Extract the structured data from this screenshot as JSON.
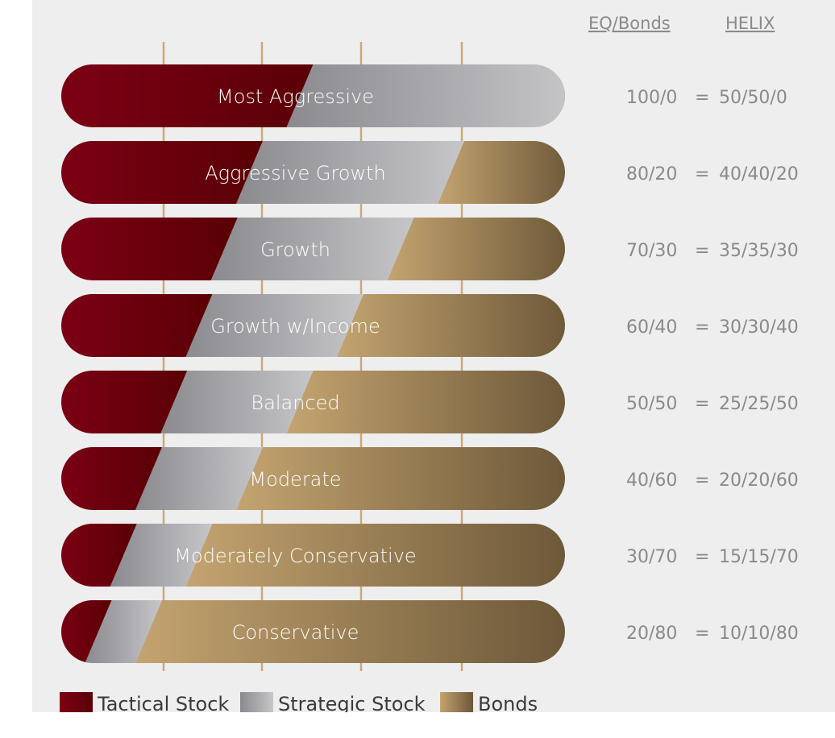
{
  "chart_data": {
    "type": "bar",
    "stacked": true,
    "orientation": "horizontal",
    "headers": {
      "eq_bonds": "EQ/Bonds",
      "helix": "HELIX"
    },
    "categories": [
      "Most Aggressive",
      "Aggressive Growth",
      "Growth",
      "Growth w/Income",
      "Balanced",
      "Moderate",
      "Moderately Conservative",
      "Conservative"
    ],
    "series": [
      {
        "name": "Tactical Stock",
        "values": [
          50,
          40,
          35,
          30,
          25,
          20,
          15,
          10
        ]
      },
      {
        "name": "Strategic Stock",
        "values": [
          50,
          40,
          35,
          30,
          25,
          20,
          15,
          10
        ]
      },
      {
        "name": "Bonds",
        "values": [
          0,
          20,
          30,
          40,
          50,
          60,
          70,
          80
        ]
      }
    ],
    "eq_bonds": [
      "100/0",
      "80/20",
      "70/30",
      "60/40",
      "50/50",
      "40/60",
      "30/70",
      "20/80"
    ],
    "helix": [
      "50/50/0",
      "40/40/20",
      "35/35/30",
      "30/30/40",
      "25/25/50",
      "20/20/60",
      "15/15/70",
      "10/10/80"
    ],
    "equals_sign": "=",
    "xlim": [
      0,
      100
    ],
    "grid": true,
    "legend_position": "bottom-left",
    "colors": {
      "tactical": [
        "#7d0014",
        "#5a0005"
      ],
      "strategic": [
        "#8a8a8f",
        "#c6c6c9"
      ],
      "bonds": [
        "#c4a470",
        "#6b5738"
      ],
      "gridline": "#c9aa78",
      "background": "#eeeeef"
    }
  }
}
